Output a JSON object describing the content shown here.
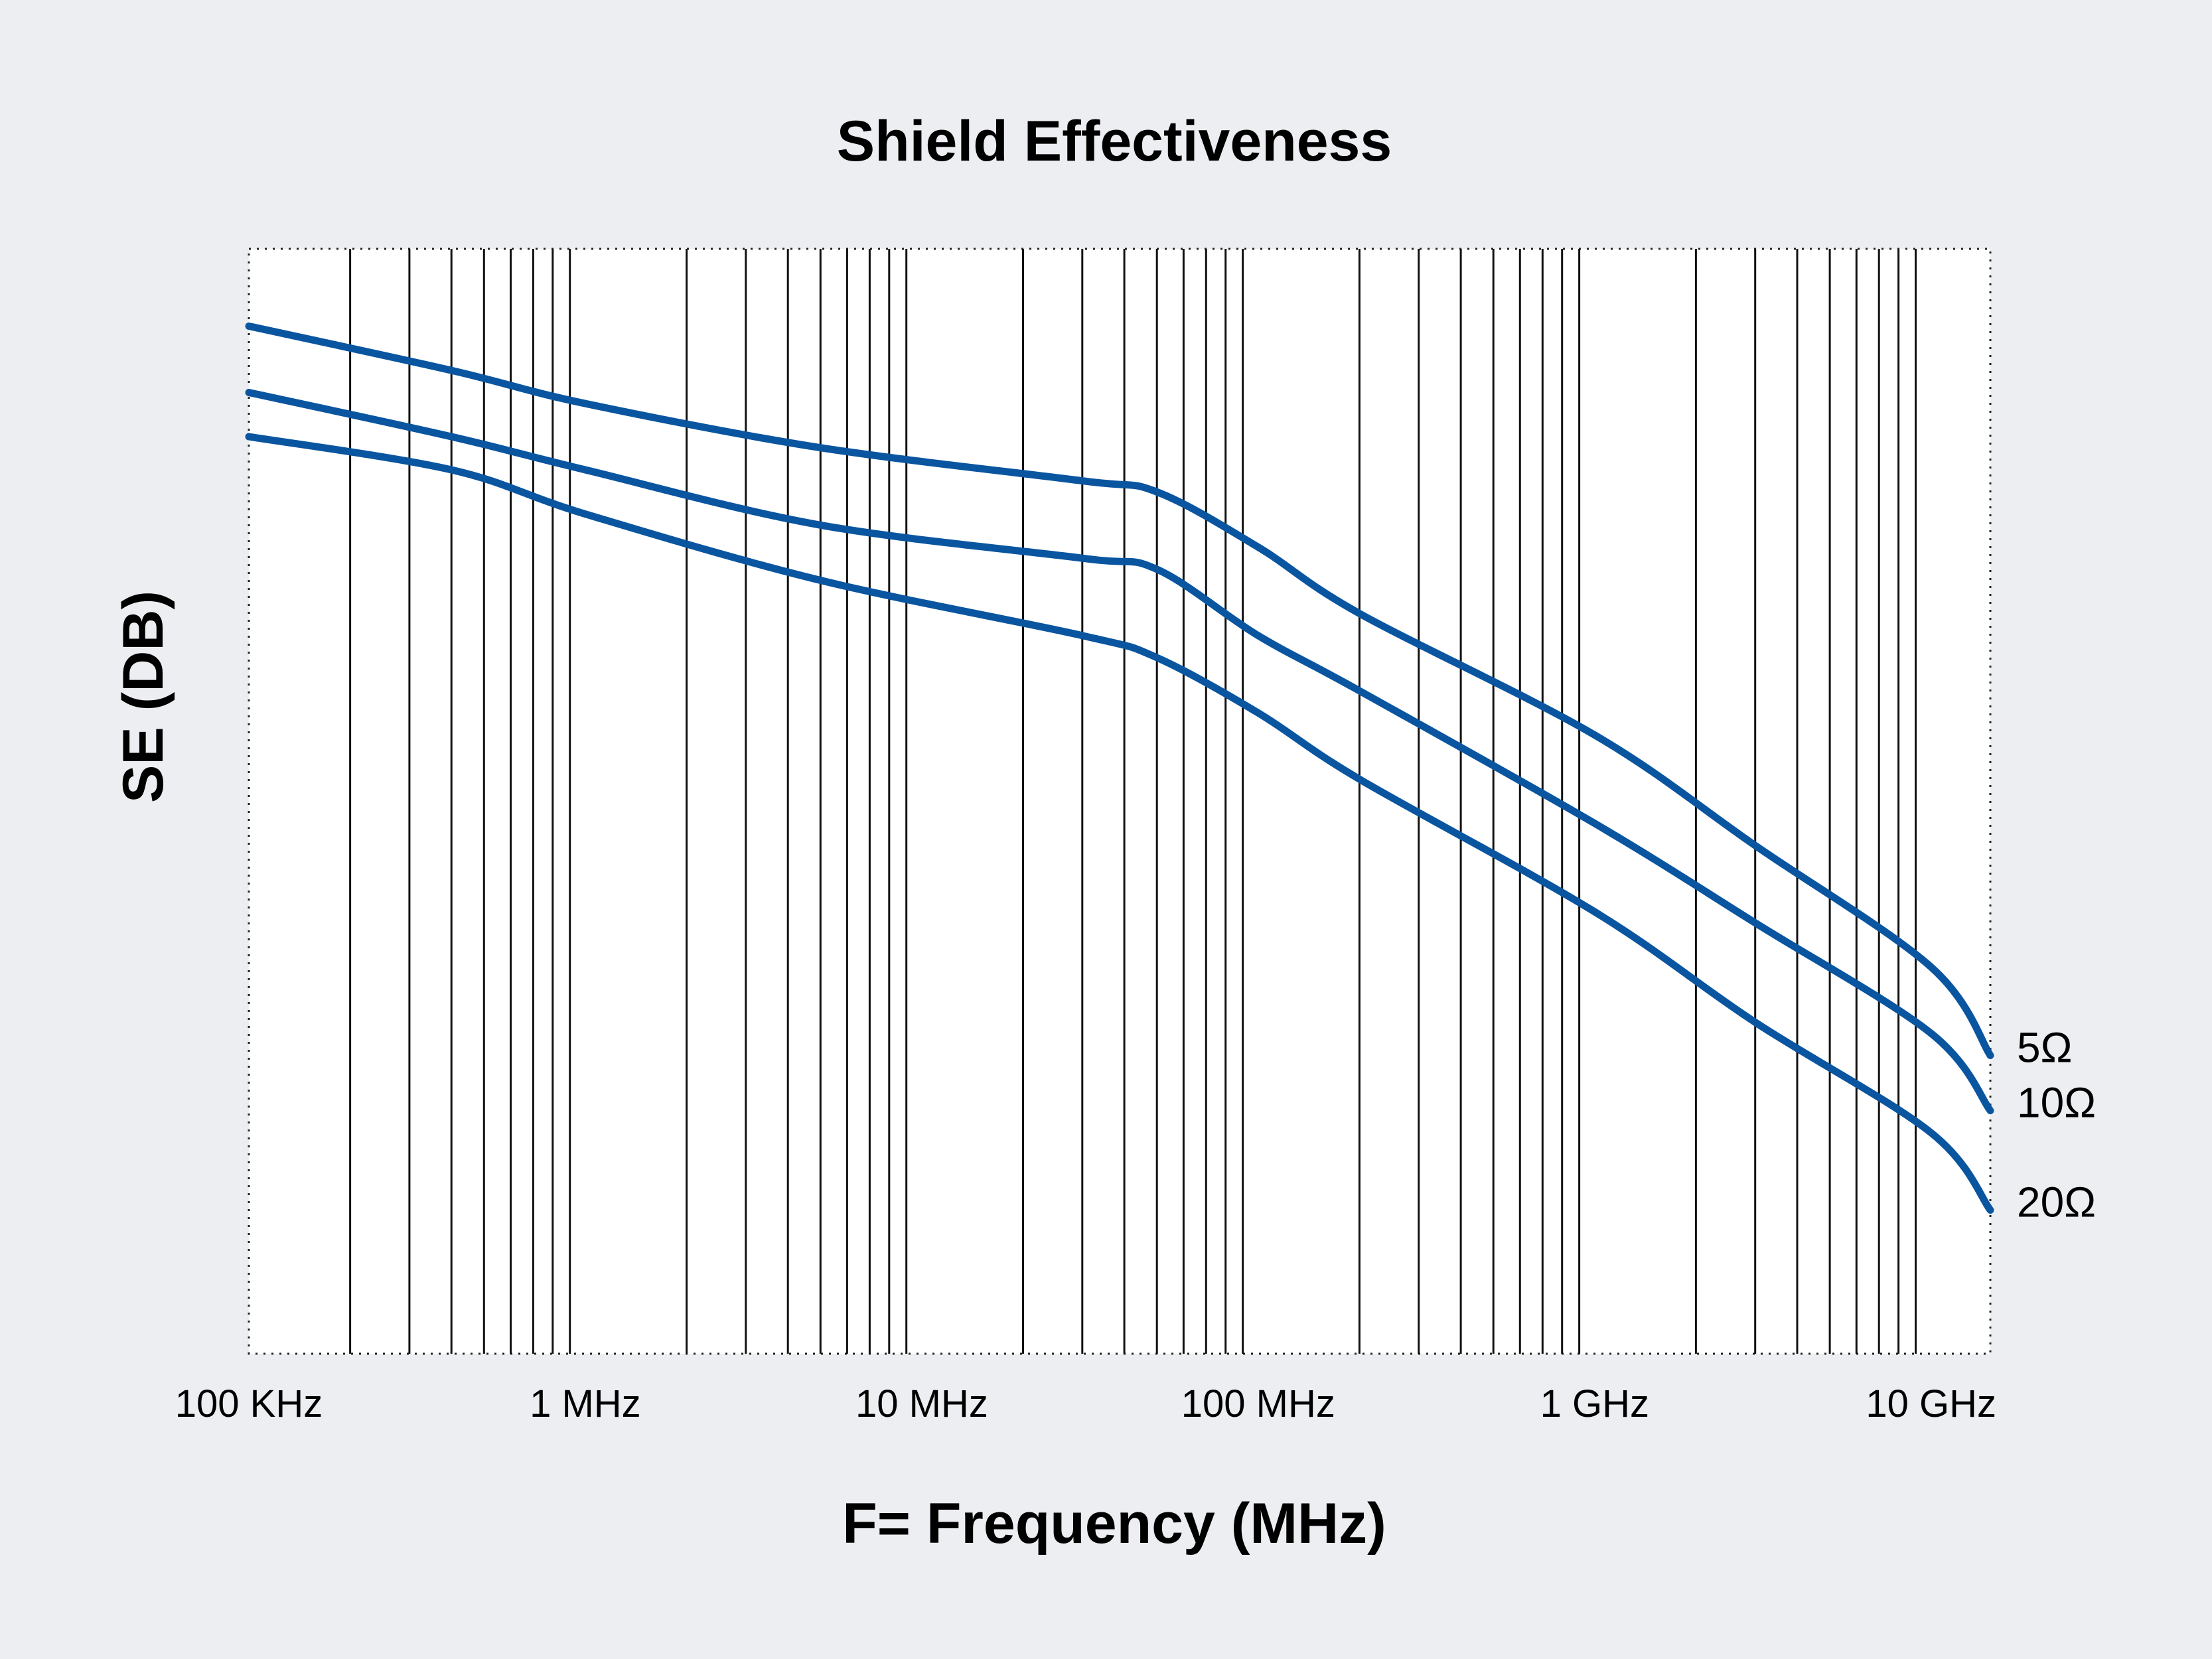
{
  "chart_data": {
    "type": "line",
    "title": "Shield Effectiveness",
    "xlabel": "F= Frequency (MHz)",
    "ylabel": "SE (DB)",
    "x_scale": "log",
    "xlim": [
      0.1,
      15000
    ],
    "ylim": [
      0,
      100
    ],
    "grid": "vertical",
    "x_ticks": [
      {
        "value": 0.1,
        "label": "100 KHz"
      },
      {
        "value": 1,
        "label": "1 MHz"
      },
      {
        "value": 10,
        "label": "10 MHz"
      },
      {
        "value": 100,
        "label": "100 MHz"
      },
      {
        "value": 1000,
        "label": "1 GHz"
      },
      {
        "value": 10000,
        "label": "10 GHz"
      }
    ],
    "series": [
      {
        "name": "5Ω",
        "color": "#0a55a0",
        "points": [
          [
            0.1,
            93
          ],
          [
            0.4,
            89
          ],
          [
            1,
            86
          ],
          [
            5,
            82
          ],
          [
            30,
            79
          ],
          [
            50,
            78
          ],
          [
            100,
            73
          ],
          [
            200,
            67
          ],
          [
            1000,
            56
          ],
          [
            3000,
            46
          ],
          [
            10000,
            35
          ],
          [
            15000,
            27
          ]
        ]
      },
      {
        "name": "10Ω",
        "color": "#0a55a0",
        "points": [
          [
            0.1,
            87
          ],
          [
            0.4,
            83
          ],
          [
            1,
            80
          ],
          [
            5,
            75
          ],
          [
            30,
            72
          ],
          [
            50,
            71
          ],
          [
            100,
            65
          ],
          [
            200,
            60
          ],
          [
            1000,
            48
          ],
          [
            3000,
            39
          ],
          [
            10000,
            29
          ],
          [
            15000,
            22
          ]
        ]
      },
      {
        "name": "20Ω",
        "color": "#0a55a0",
        "points": [
          [
            0.1,
            83
          ],
          [
            0.4,
            80
          ],
          [
            1,
            76
          ],
          [
            5,
            70
          ],
          [
            30,
            65
          ],
          [
            50,
            63
          ],
          [
            100,
            58
          ],
          [
            200,
            52
          ],
          [
            1000,
            40
          ],
          [
            3000,
            30
          ],
          [
            10000,
            20
          ],
          [
            15000,
            13
          ]
        ]
      }
    ]
  }
}
